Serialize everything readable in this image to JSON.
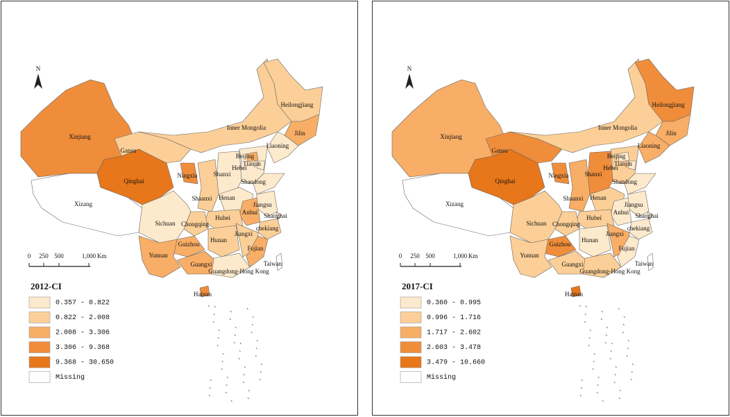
{
  "north": "N",
  "scale_labels": [
    "0",
    "250",
    "500",
    "1,000",
    "Km"
  ],
  "panels": [
    {
      "title": "2012-CI",
      "legend": [
        {
          "label": "0.357 - 0.822",
          "color": "#fde9cc"
        },
        {
          "label": "0.822 - 2.008",
          "color": "#fbcf97"
        },
        {
          "label": "2.008 - 3.306",
          "color": "#f8ae66"
        },
        {
          "label": "3.306 - 9.368",
          "color": "#f08d3b"
        },
        {
          "label": "9.368 - 30.650",
          "color": "#e8761a"
        },
        {
          "label": "Missing",
          "color": "#ffffff"
        }
      ],
      "provinces": [
        {
          "label": "Xinjiang",
          "color": "#f08d3b"
        },
        {
          "label": "Xizang",
          "color": "#ffffff"
        },
        {
          "label": "Qinghai",
          "color": "#e8761a"
        },
        {
          "label": "Gansu",
          "color": "#fbcf97"
        },
        {
          "label": "Inner Mongolia",
          "color": "#fbcf97"
        },
        {
          "label": "Heilongjiang",
          "color": "#fbcf97"
        },
        {
          "label": "Jilin",
          "color": "#f8ae66"
        },
        {
          "label": "Liaoning",
          "color": "#fde9cc"
        },
        {
          "label": "Hebei",
          "color": "#fde9cc"
        },
        {
          "label": "Beijing",
          "color": "#f8ae66"
        },
        {
          "label": "Tianjin",
          "color": "#fde9cc"
        },
        {
          "label": "Shanxi",
          "color": "#fde9cc"
        },
        {
          "label": "Shandong",
          "color": "#fde9cc"
        },
        {
          "label": "Shaanxi",
          "color": "#fbcf97"
        },
        {
          "label": "Ningxia",
          "color": "#f08d3b"
        },
        {
          "label": "Henan",
          "color": "#fde9cc"
        },
        {
          "label": "Jiangsu",
          "color": "#fde9cc"
        },
        {
          "label": "Anhui",
          "color": "#f8ae66"
        },
        {
          "label": "Shanghai",
          "color": "#fde9cc"
        },
        {
          "label": "chekiang",
          "color": "#fbcf97"
        },
        {
          "label": "Hubei",
          "color": "#fbcf97"
        },
        {
          "label": "Sichuan",
          "color": "#fde9cc"
        },
        {
          "label": "Chongqing",
          "color": "#fbcf97"
        },
        {
          "label": "Guizhou",
          "color": "#f8ae66"
        },
        {
          "label": "Yunnan",
          "color": "#f8ae66"
        },
        {
          "label": "Hunan",
          "color": "#fbcf97"
        },
        {
          "label": "Jiangxi",
          "color": "#fbcf97"
        },
        {
          "label": "Fujian",
          "color": "#f8ae66"
        },
        {
          "label": "Guangxi",
          "color": "#f8ae66"
        },
        {
          "label": "Guangdong-Hong Kong",
          "color": "#fde9cc"
        },
        {
          "label": "Hainan",
          "color": "#f08d3b"
        },
        {
          "label": "Taiwan",
          "color": "#ffffff"
        }
      ]
    },
    {
      "title": "2017-CI",
      "legend": [
        {
          "label": "0.360 - 0.995",
          "color": "#fde9cc"
        },
        {
          "label": "0.996 - 1.716",
          "color": "#fbcf97"
        },
        {
          "label": "1.717 - 2.602",
          "color": "#f8ae66"
        },
        {
          "label": "2.603 - 3.478",
          "color": "#f08d3b"
        },
        {
          "label": "3.479 - 10.660",
          "color": "#e8761a"
        },
        {
          "label": "Missing",
          "color": "#ffffff"
        }
      ],
      "provinces": [
        {
          "label": "Xinjiang",
          "color": "#f8ae66"
        },
        {
          "label": "Xizang",
          "color": "#ffffff"
        },
        {
          "label": "Qinghai",
          "color": "#e8761a"
        },
        {
          "label": "Gansu",
          "color": "#f08d3b"
        },
        {
          "label": "Inner Mongolia",
          "color": "#fbcf97"
        },
        {
          "label": "Heilongjiang",
          "color": "#f08d3b"
        },
        {
          "label": "Jilin",
          "color": "#f8ae66"
        },
        {
          "label": "Liaoning",
          "color": "#f8ae66"
        },
        {
          "label": "Hebei",
          "color": "#fbcf97"
        },
        {
          "label": "Beijing",
          "color": "#fde9cc"
        },
        {
          "label": "Tianjin",
          "color": "#fde9cc"
        },
        {
          "label": "Shanxi",
          "color": "#f08d3b"
        },
        {
          "label": "Shandong",
          "color": "#fde9cc"
        },
        {
          "label": "Shaanxi",
          "color": "#f8ae66"
        },
        {
          "label": "Ningxia",
          "color": "#f08d3b"
        },
        {
          "label": "Henan",
          "color": "#fbcf97"
        },
        {
          "label": "Jiangsu",
          "color": "#fde9cc"
        },
        {
          "label": "Anhui",
          "color": "#fde9cc"
        },
        {
          "label": "Shanghai",
          "color": "#fde9cc"
        },
        {
          "label": "chekiang",
          "color": "#fde9cc"
        },
        {
          "label": "Hubei",
          "color": "#fbcf97"
        },
        {
          "label": "Sichuan",
          "color": "#fbcf97"
        },
        {
          "label": "Chongqing",
          "color": "#fbcf97"
        },
        {
          "label": "Guizhou",
          "color": "#f08d3b"
        },
        {
          "label": "Yunnan",
          "color": "#fbcf97"
        },
        {
          "label": "Hunan",
          "color": "#fde9cc"
        },
        {
          "label": "Jiangxi",
          "color": "#f8ae66"
        },
        {
          "label": "Fujian",
          "color": "#fde9cc"
        },
        {
          "label": "Guangxi",
          "color": "#fbcf97"
        },
        {
          "label": "Guangdong-Hong Kong",
          "color": "#fbcf97"
        },
        {
          "label": "Hainan",
          "color": "#e8761a"
        },
        {
          "label": "Taiwan",
          "color": "#ffffff"
        }
      ]
    }
  ]
}
